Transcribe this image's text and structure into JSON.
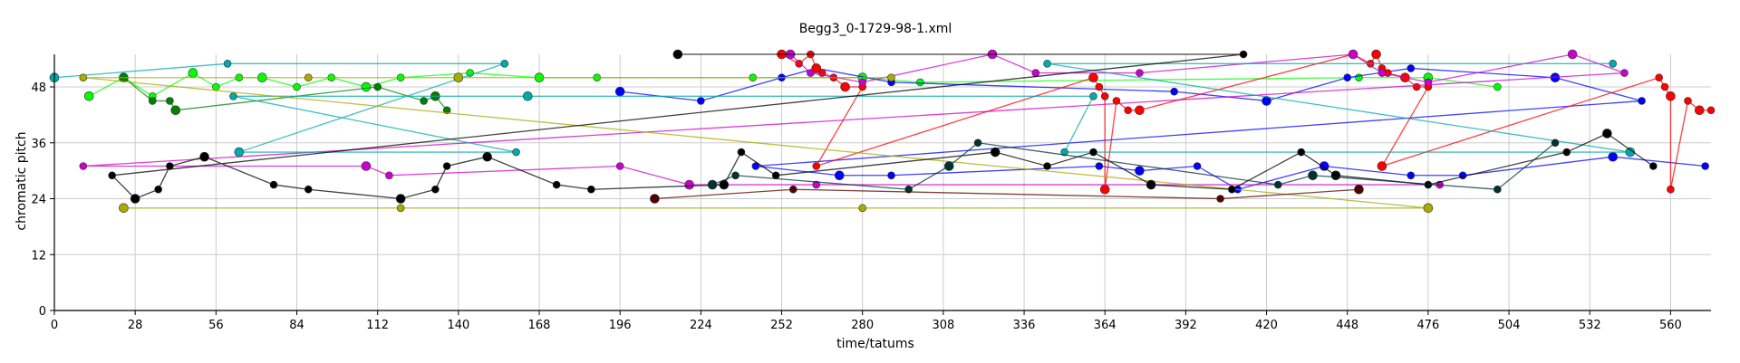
{
  "chart_data": {
    "type": "scatter",
    "title": "Begg3_0-1729-98-1.xml",
    "xlabel": "time/tatums",
    "ylabel": "chromatic pitch",
    "xlim": [
      0,
      574
    ],
    "ylim": [
      0,
      55
    ],
    "x_ticks": [
      "0",
      "28",
      "56",
      "84",
      "112",
      "140",
      "168",
      "196",
      "224",
      "252",
      "280",
      "308",
      "336",
      "364",
      "392",
      "420",
      "448",
      "476",
      "504",
      "532",
      "560"
    ],
    "y_ticks": [
      "0",
      "12",
      "24",
      "36",
      "48"
    ],
    "grid": true,
    "series": [
      {
        "color": "#00ff00",
        "points": [
          [
            12,
            46
          ],
          [
            24,
            50
          ],
          [
            34,
            46
          ],
          [
            48,
            51
          ],
          [
            56,
            48
          ],
          [
            64,
            50
          ],
          [
            72,
            50
          ],
          [
            84,
            48
          ],
          [
            96,
            50
          ],
          [
            108,
            48
          ],
          [
            120,
            50
          ],
          [
            144,
            51
          ],
          [
            168,
            50
          ],
          [
            188,
            50
          ],
          [
            242,
            50
          ],
          [
            280,
            50
          ],
          [
            300,
            49
          ],
          [
            452,
            50
          ],
          [
            476,
            50
          ],
          [
            500,
            48
          ]
        ]
      },
      {
        "color": "#008000",
        "points": [
          [
            24,
            50
          ],
          [
            34,
            45
          ],
          [
            40,
            45
          ],
          [
            42,
            43
          ],
          [
            112,
            48
          ],
          [
            128,
            45
          ],
          [
            132,
            46
          ],
          [
            136,
            43
          ]
        ]
      },
      {
        "color": "#0000ff",
        "points": [
          [
            196,
            47
          ],
          [
            224,
            45
          ],
          [
            252,
            50
          ],
          [
            264,
            52
          ],
          [
            290,
            49
          ],
          [
            388,
            47
          ],
          [
            420,
            45
          ],
          [
            448,
            50
          ],
          [
            470,
            52
          ],
          [
            520,
            50
          ],
          [
            550,
            45
          ],
          [
            243,
            31
          ],
          [
            272,
            29
          ],
          [
            290,
            29
          ],
          [
            362,
            31
          ],
          [
            376,
            30
          ],
          [
            396,
            31
          ],
          [
            410,
            26
          ],
          [
            440,
            31
          ],
          [
            470,
            29
          ],
          [
            488,
            29
          ],
          [
            540,
            33
          ],
          [
            572,
            31
          ]
        ]
      },
      {
        "color": "#ff0000",
        "points": [
          [
            252,
            55
          ],
          [
            258,
            53
          ],
          [
            262,
            55
          ],
          [
            264,
            52
          ],
          [
            266,
            51
          ],
          [
            270,
            50
          ],
          [
            274,
            48
          ],
          [
            280,
            48
          ],
          [
            264,
            31
          ],
          [
            360,
            50
          ],
          [
            362,
            48
          ],
          [
            364,
            46
          ],
          [
            364,
            26
          ],
          [
            368,
            45
          ],
          [
            372,
            43
          ],
          [
            376,
            43
          ],
          [
            450,
            55
          ],
          [
            456,
            53
          ],
          [
            458,
            55
          ],
          [
            460,
            52
          ],
          [
            462,
            51
          ],
          [
            468,
            50
          ],
          [
            472,
            48
          ],
          [
            476,
            48
          ],
          [
            460,
            31
          ],
          [
            556,
            50
          ],
          [
            558,
            48
          ],
          [
            560,
            46
          ],
          [
            560,
            26
          ],
          [
            566,
            45
          ],
          [
            570,
            43
          ],
          [
            574,
            43
          ]
        ]
      },
      {
        "color": "#cc00cc",
        "points": [
          [
            255,
            55
          ],
          [
            262,
            51
          ],
          [
            280,
            49
          ],
          [
            325,
            55
          ],
          [
            340,
            51
          ],
          [
            376,
            51
          ],
          [
            450,
            55
          ],
          [
            460,
            51
          ],
          [
            476,
            49
          ],
          [
            526,
            55
          ],
          [
            544,
            51
          ],
          [
            10,
            31
          ],
          [
            108,
            31
          ],
          [
            116,
            29
          ],
          [
            196,
            31
          ],
          [
            220,
            27
          ],
          [
            264,
            27
          ],
          [
            480,
            27
          ]
        ]
      },
      {
        "color": "#00aaaa",
        "points": [
          [
            0,
            50
          ],
          [
            60,
            53
          ],
          [
            156,
            53
          ],
          [
            64,
            34
          ],
          [
            160,
            34
          ],
          [
            62,
            46
          ],
          [
            164,
            46
          ],
          [
            360,
            46
          ],
          [
            350,
            34
          ],
          [
            546,
            34
          ],
          [
            344,
            53
          ],
          [
            540,
            53
          ]
        ]
      },
      {
        "color": "#aaaa00",
        "points": [
          [
            24,
            22
          ],
          [
            120,
            22
          ],
          [
            280,
            22
          ],
          [
            476,
            22
          ],
          [
            10,
            50
          ],
          [
            88,
            50
          ],
          [
            140,
            50
          ],
          [
            290,
            50
          ]
        ]
      },
      {
        "color": "#000000",
        "points": [
          [
            216,
            55
          ],
          [
            412,
            55
          ],
          [
            20,
            29
          ],
          [
            28,
            24
          ],
          [
            36,
            26
          ],
          [
            40,
            31
          ],
          [
            52,
            33
          ],
          [
            76,
            27
          ],
          [
            88,
            26
          ],
          [
            120,
            24
          ],
          [
            132,
            26
          ],
          [
            136,
            31
          ],
          [
            150,
            33
          ],
          [
            174,
            27
          ],
          [
            186,
            26
          ],
          [
            232,
            27
          ],
          [
            238,
            34
          ],
          [
            250,
            29
          ],
          [
            326,
            34
          ],
          [
            344,
            31
          ],
          [
            360,
            34
          ],
          [
            380,
            27
          ],
          [
            408,
            26
          ],
          [
            432,
            34
          ],
          [
            444,
            29
          ],
          [
            476,
            27
          ],
          [
            524,
            34
          ],
          [
            538,
            38
          ],
          [
            554,
            31
          ]
        ]
      },
      {
        "color": "#003333",
        "points": [
          [
            228,
            27
          ],
          [
            236,
            29
          ],
          [
            296,
            26
          ],
          [
            310,
            31
          ],
          [
            320,
            36
          ],
          [
            424,
            27
          ],
          [
            436,
            29
          ],
          [
            500,
            26
          ],
          [
            520,
            36
          ]
        ]
      },
      {
        "color": "#550000",
        "points": [
          [
            208,
            24
          ],
          [
            256,
            26
          ],
          [
            404,
            24
          ],
          [
            452,
            26
          ]
        ]
      }
    ]
  }
}
